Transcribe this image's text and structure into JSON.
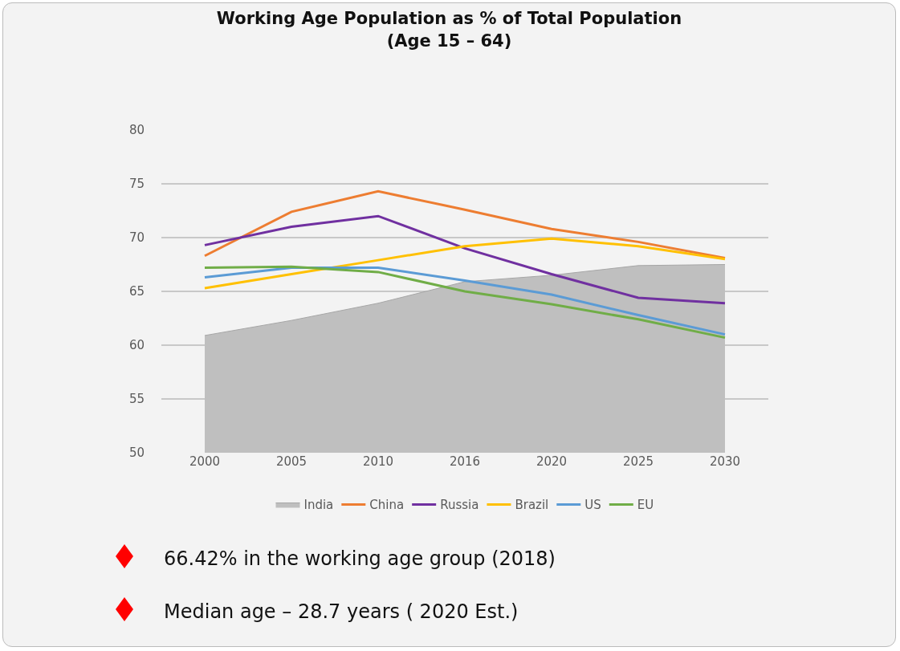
{
  "chart_data": {
    "type": "line",
    "title": "Working Age Population as % of Total Population",
    "subtitle": "(Age 15 – 64)",
    "categories": [
      "2000",
      "2005",
      "2010",
      "2016",
      "2020",
      "2025",
      "2030"
    ],
    "series": [
      {
        "name": "India",
        "type": "area",
        "color": "#bfbfbf",
        "values": [
          60.9,
          62.3,
          63.9,
          65.9,
          66.5,
          67.4,
          67.5
        ]
      },
      {
        "name": "China",
        "color": "#ed7d31",
        "values": [
          68.3,
          72.4,
          74.3,
          72.6,
          70.8,
          69.6,
          68.1
        ]
      },
      {
        "name": "Russia",
        "color": "#7030a0",
        "values": [
          69.3,
          71.0,
          72.0,
          69.0,
          66.6,
          64.4,
          63.9
        ]
      },
      {
        "name": "Brazil",
        "color": "#ffc000",
        "values": [
          65.3,
          66.6,
          67.9,
          69.2,
          69.9,
          69.2,
          68.0
        ]
      },
      {
        "name": "US",
        "color": "#5b9bd5",
        "values": [
          66.3,
          67.2,
          67.2,
          66.0,
          64.7,
          62.8,
          61.0
        ]
      },
      {
        "name": "EU",
        "color": "#70ad47",
        "values": [
          67.2,
          67.3,
          66.8,
          65.0,
          63.8,
          62.4,
          60.7
        ]
      }
    ],
    "ylim": [
      50,
      80
    ],
    "yticks": [
      50,
      55,
      60,
      65,
      70,
      75,
      80
    ],
    "grid": "y",
    "legend": "bottom",
    "marker": "none",
    "line_style": "solid",
    "annotations": [
      "66.42%  in the working age group (2018)",
      "Median age – 28.7 years ( 2020 Est.)"
    ]
  }
}
